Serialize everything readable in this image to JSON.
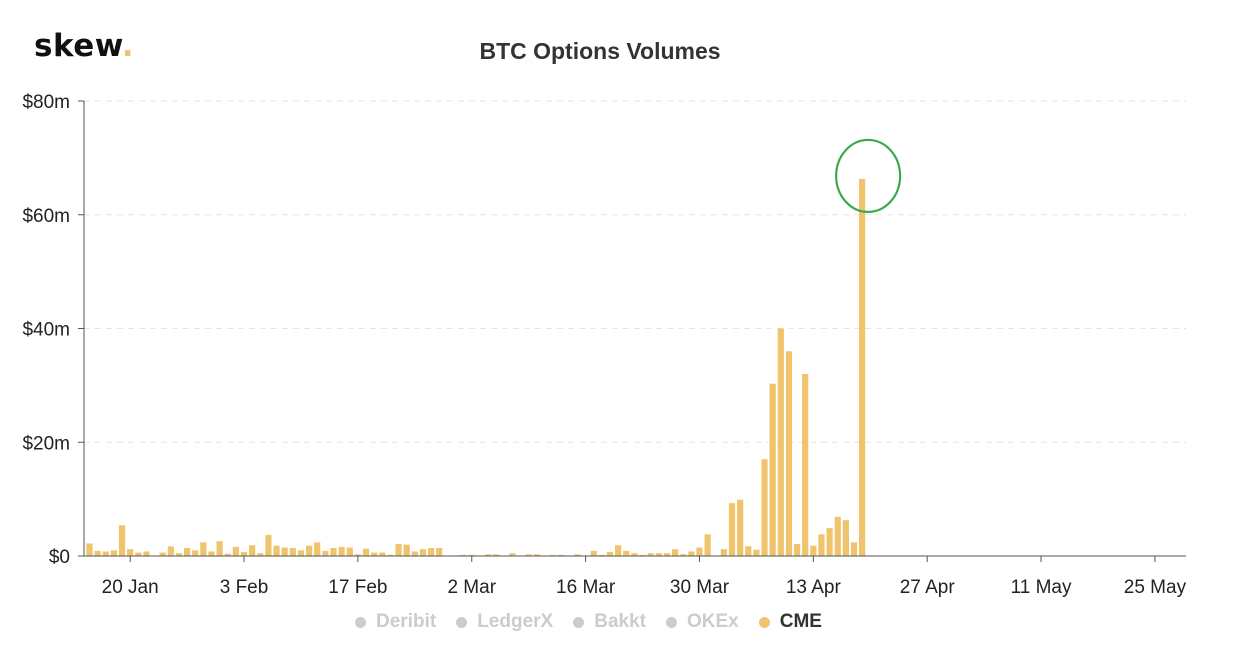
{
  "logo": {
    "text": "skew",
    "dot": "."
  },
  "chart_data": {
    "type": "bar",
    "title": "BTC Options Volumes",
    "xlabel": "",
    "ylabel": "",
    "ylim": [
      0,
      80
    ],
    "y_unit": "$m",
    "y_ticks": [
      "$0",
      "$20m",
      "$40m",
      "$60m",
      "$80m"
    ],
    "y_tick_values": [
      0,
      20,
      40,
      60,
      80
    ],
    "grid": true,
    "x_ticks": [
      "20 Jan",
      "3 Feb",
      "17 Feb",
      "2 Mar",
      "16 Mar",
      "30 Mar",
      "13 Apr",
      "27 Apr",
      "11 May",
      "25 May"
    ],
    "x_tick_index": [
      5,
      19,
      33,
      47,
      61,
      75,
      89,
      103,
      117,
      131
    ],
    "x_start": "2020-01-15",
    "series": [
      {
        "name": "CME",
        "color": "#f0c36d",
        "values": [
          2.2,
          0.9,
          0.8,
          1.0,
          5.4,
          1.2,
          0.6,
          0.8,
          0,
          0.6,
          1.7,
          0.5,
          1.4,
          1.0,
          2.4,
          0.8,
          2.6,
          0.4,
          1.6,
          0.7,
          1.9,
          0.5,
          3.7,
          1.8,
          1.5,
          1.4,
          1.0,
          1.8,
          2.4,
          0.9,
          1.4,
          1.6,
          1.5,
          0.3,
          1.3,
          0.6,
          0.6,
          0.2,
          2.1,
          2.0,
          0.8,
          1.2,
          1.4,
          1.4,
          0,
          0.1,
          0.2,
          0.2,
          0,
          0.3,
          0.3,
          0,
          0.5,
          0,
          0.3,
          0.3,
          0,
          0.2,
          0.2,
          0,
          0.3,
          0,
          0.9,
          0.2,
          0.7,
          1.9,
          0.9,
          0.5,
          0.2,
          0.5,
          0.5,
          0.5,
          1.2,
          0.3,
          0.8,
          1.5,
          3.8,
          0,
          1.2,
          9.3,
          9.9,
          1.7,
          1.1,
          17.0,
          30.3,
          40.0,
          36.0,
          2.1,
          32.0,
          1.8,
          3.8,
          4.9,
          6.9,
          6.3,
          2.4,
          66.3
        ]
      }
    ],
    "legend_position": "bottom",
    "legend": [
      {
        "label": "Deribit",
        "active": false,
        "color": "#cccccc"
      },
      {
        "label": "LedgerX",
        "active": false,
        "color": "#cccccc"
      },
      {
        "label": "Bakkt",
        "active": false,
        "color": "#cccccc"
      },
      {
        "label": "OKEx",
        "active": false,
        "color": "#cccccc"
      },
      {
        "label": "CME",
        "active": true,
        "color": "#f0c36d"
      }
    ],
    "annotation": {
      "type": "circle",
      "target": "last-bar",
      "color": "#3aaa4a"
    }
  }
}
